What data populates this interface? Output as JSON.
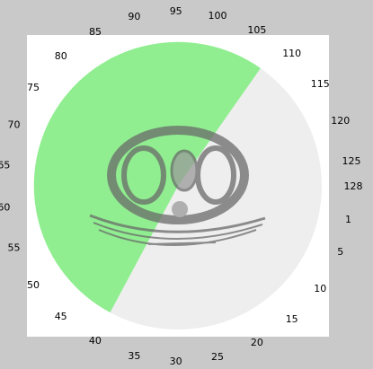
{
  "dial": {
    "min": 1,
    "max": 128,
    "selected_start": 40,
    "selected_end": 108,
    "tick_labels": [
      "1",
      "5",
      "10",
      "15",
      "20",
      "25",
      "30",
      "35",
      "40",
      "45",
      "50",
      "55",
      "60",
      "65",
      "70",
      "75",
      "80",
      "85",
      "90",
      "95",
      "100",
      "105",
      "110",
      "115",
      "120",
      "125",
      "128"
    ],
    "colors": {
      "background": "#c9c9c9",
      "panel": "#ffffff",
      "disc": "#eeeeee",
      "selection": "#90ee90",
      "icon_shade": "#8a8a8a",
      "icon_dark": "#5a5a5a"
    },
    "icon": "steering-wheel-icon"
  }
}
